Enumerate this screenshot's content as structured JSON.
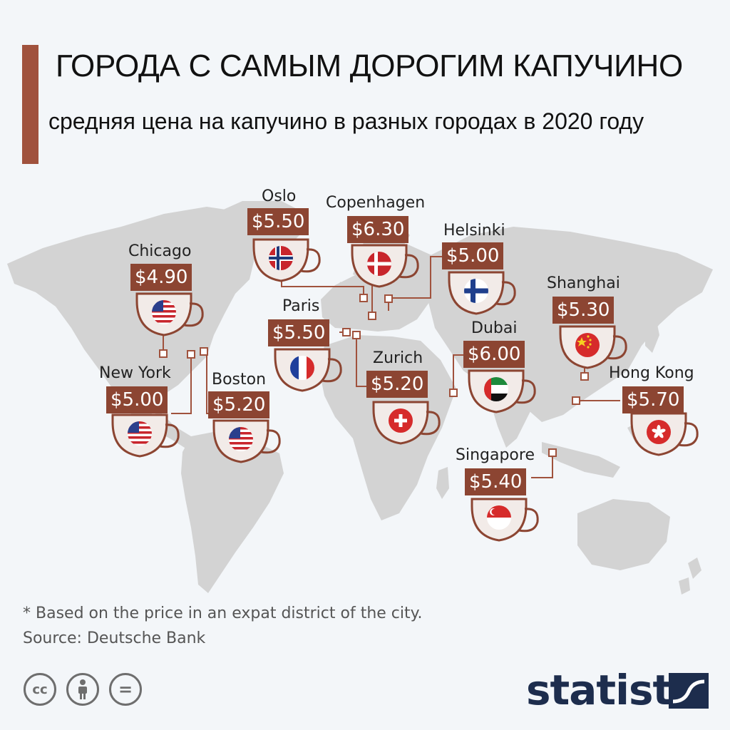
{
  "header": {
    "title": "ГОРОДА С САМЫМ ДОРОГИМ КАПУЧИНО",
    "subtitle": "средняя цена на капучино в разных городах в 2020 году"
  },
  "colors": {
    "accent": "#a0523d",
    "price_box": "#8c4532",
    "land": "#d3d3d3",
    "background": "#f3f6f9",
    "logo": "#1d2d4d"
  },
  "cities": [
    {
      "name": "Chicago",
      "price": "$4.90",
      "flag": "us-flag-icon"
    },
    {
      "name": "New York",
      "price": "$5.00",
      "flag": "us-flag-icon"
    },
    {
      "name": "Boston",
      "price": "$5.20",
      "flag": "us-flag-icon"
    },
    {
      "name": "Oslo",
      "price": "$5.50",
      "flag": "norway-flag-icon"
    },
    {
      "name": "Copenhagen",
      "price": "$6.30",
      "flag": "denmark-flag-icon"
    },
    {
      "name": "Helsinki",
      "price": "$5.00",
      "flag": "finland-flag-icon"
    },
    {
      "name": "Paris",
      "price": "$5.50",
      "flag": "france-flag-icon"
    },
    {
      "name": "Zurich",
      "price": "$5.20",
      "flag": "switzerland-flag-icon"
    },
    {
      "name": "Dubai",
      "price": "$6.00",
      "flag": "uae-flag-icon"
    },
    {
      "name": "Shanghai",
      "price": "$5.30",
      "flag": "china-flag-icon"
    },
    {
      "name": "Hong Kong",
      "price": "$5.70",
      "flag": "hong-kong-flag-icon"
    },
    {
      "name": "Singapore",
      "price": "$5.40",
      "flag": "singapore-flag-icon"
    }
  ],
  "footer": {
    "note": "* Based on the price in an expat district of the city.",
    "source": "Source: Deutsche Bank",
    "license_icons": [
      "cc-icon",
      "attribution-icon",
      "no-derivatives-icon"
    ],
    "cc_label": "cc",
    "nd_label": "=",
    "logo": "statista"
  }
}
